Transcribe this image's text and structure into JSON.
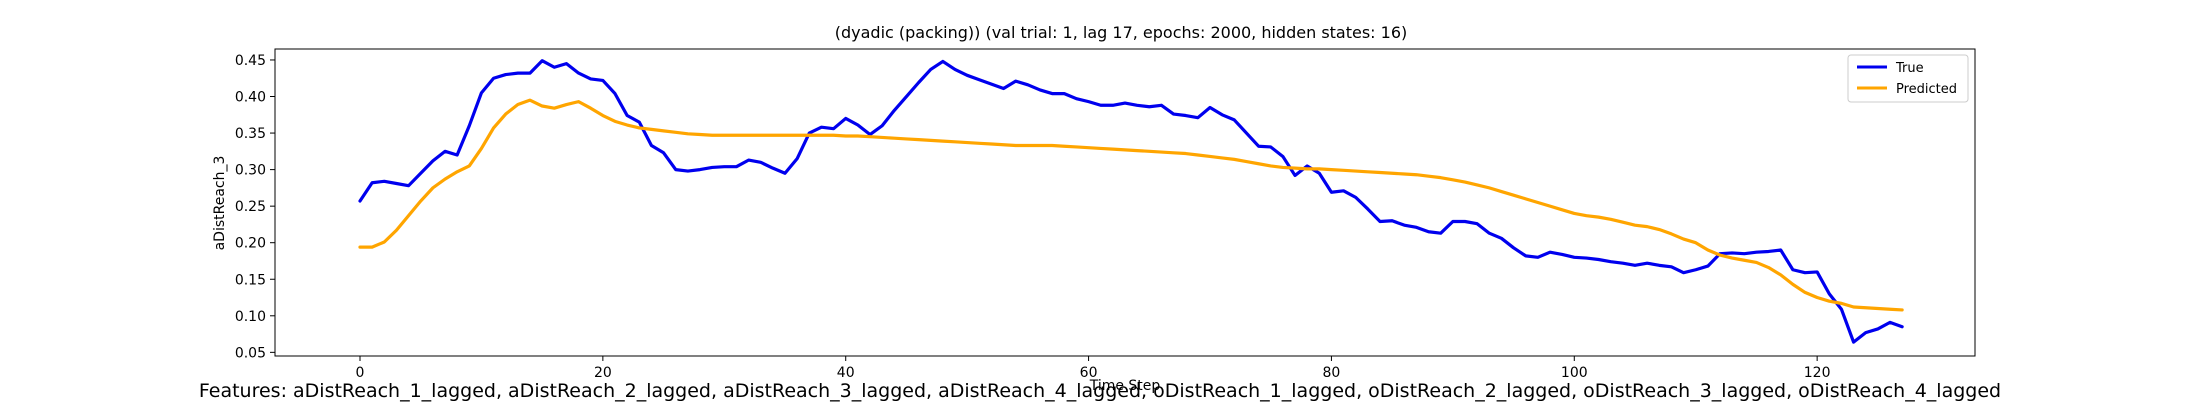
{
  "chart_data": {
    "type": "line",
    "title": "(dyadic (packing)) (val trial: 1, lag 17, epochs: 2000, hidden states: 16)",
    "xlabel": "Time Step",
    "ylabel": "aDistReach_3",
    "xlim": [
      -7,
      133
    ],
    "ylim": [
      0.045,
      0.465
    ],
    "xticks": [
      0,
      20,
      40,
      60,
      80,
      100,
      120
    ],
    "yticks": [
      0.05,
      0.1,
      0.15,
      0.2,
      0.25,
      0.3,
      0.35,
      0.4,
      0.45
    ],
    "ytick_labels": [
      "0.05",
      "0.10",
      "0.15",
      "0.20",
      "0.25",
      "0.30",
      "0.35",
      "0.40",
      "0.45"
    ],
    "legend_position": "top-right",
    "grid": false,
    "series": [
      {
        "name": "True",
        "color": "#0000ee",
        "y": [
          0.257,
          0.282,
          0.284,
          0.281,
          0.278,
          0.295,
          0.312,
          0.325,
          0.32,
          0.36,
          0.405,
          0.425,
          0.43,
          0.432,
          0.432,
          0.449,
          0.44,
          0.445,
          0.432,
          0.424,
          0.422,
          0.404,
          0.374,
          0.365,
          0.333,
          0.323,
          0.3,
          0.298,
          0.3,
          0.303,
          0.304,
          0.304,
          0.313,
          0.31,
          0.302,
          0.295,
          0.315,
          0.35,
          0.358,
          0.356,
          0.37,
          0.361,
          0.348,
          0.36,
          0.381,
          0.4,
          0.419,
          0.437,
          0.448,
          0.437,
          0.429,
          0.423,
          0.417,
          0.411,
          0.421,
          0.416,
          0.409,
          0.404,
          0.404,
          0.397,
          0.393,
          0.388,
          0.388,
          0.391,
          0.388,
          0.386,
          0.388,
          0.376,
          0.374,
          0.371,
          0.385,
          0.375,
          0.368,
          0.35,
          0.332,
          0.331,
          0.318,
          0.292,
          0.305,
          0.295,
          0.269,
          0.271,
          0.262,
          0.246,
          0.229,
          0.23,
          0.224,
          0.221,
          0.215,
          0.213,
          0.229,
          0.229,
          0.226,
          0.213,
          0.206,
          0.193,
          0.182,
          0.18,
          0.187,
          0.184,
          0.18,
          0.179,
          0.177,
          0.174,
          0.172,
          0.169,
          0.172,
          0.169,
          0.167,
          0.159,
          0.163,
          0.168,
          0.185,
          0.186,
          0.185,
          0.187,
          0.188,
          0.19,
          0.163,
          0.159,
          0.16,
          0.13,
          0.109,
          0.064,
          0.077,
          0.082,
          0.091,
          0.085
        ]
      },
      {
        "name": "Predicted",
        "color": "#ffa500",
        "y": [
          0.194,
          0.194,
          0.201,
          0.217,
          0.237,
          0.257,
          0.275,
          0.287,
          0.297,
          0.305,
          0.329,
          0.357,
          0.376,
          0.389,
          0.395,
          0.387,
          0.384,
          0.389,
          0.393,
          0.384,
          0.374,
          0.366,
          0.361,
          0.357,
          0.355,
          0.353,
          0.351,
          0.349,
          0.348,
          0.347,
          0.347,
          0.347,
          0.347,
          0.347,
          0.347,
          0.347,
          0.347,
          0.347,
          0.347,
          0.347,
          0.346,
          0.346,
          0.345,
          0.344,
          0.343,
          0.342,
          0.341,
          0.34,
          0.339,
          0.338,
          0.337,
          0.336,
          0.335,
          0.334,
          0.333,
          0.333,
          0.333,
          0.333,
          0.332,
          0.331,
          0.33,
          0.329,
          0.328,
          0.327,
          0.326,
          0.325,
          0.324,
          0.323,
          0.322,
          0.32,
          0.318,
          0.316,
          0.314,
          0.311,
          0.308,
          0.305,
          0.303,
          0.302,
          0.301,
          0.301,
          0.3,
          0.299,
          0.298,
          0.297,
          0.296,
          0.295,
          0.294,
          0.293,
          0.291,
          0.289,
          0.286,
          0.283,
          0.279,
          0.275,
          0.27,
          0.265,
          0.26,
          0.255,
          0.25,
          0.245,
          0.24,
          0.237,
          0.235,
          0.232,
          0.228,
          0.224,
          0.222,
          0.218,
          0.212,
          0.205,
          0.2,
          0.19,
          0.183,
          0.179,
          0.176,
          0.173,
          0.166,
          0.156,
          0.143,
          0.132,
          0.125,
          0.12,
          0.117,
          0.112,
          0.111,
          0.11,
          0.109,
          0.108
        ]
      }
    ]
  },
  "caption": "Features: aDistReach_1_lagged, aDistReach_2_lagged, aDistReach_3_lagged, aDistReach_4_lagged, oDistReach_1_lagged, oDistReach_2_lagged, oDistReach_3_lagged, oDistReach_4_lagged"
}
